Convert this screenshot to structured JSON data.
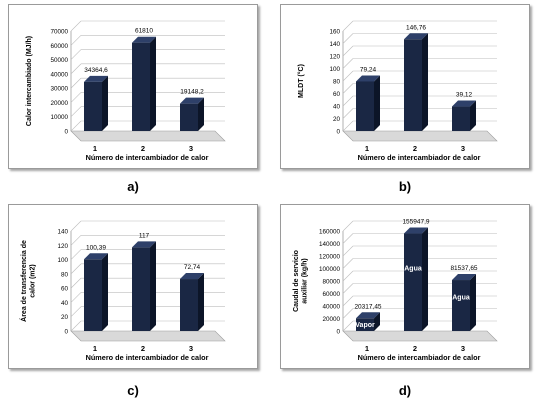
{
  "colors": {
    "bar_front": "#1a2744",
    "bar_top": "#2e4069",
    "bar_side": "#0c1528",
    "grid": "#bdbdbd",
    "floor": "#d9d9d9",
    "text": "#000000",
    "inbar_text": "#ffffff"
  },
  "panel_labels": [
    "a)",
    "b)",
    "c)",
    "d)"
  ],
  "chart_data": [
    {
      "type": "bar",
      "categories": [
        "1",
        "2",
        "3"
      ],
      "values": [
        34364.6,
        61810,
        19148.2
      ],
      "data_labels": [
        "34364,6",
        "61810",
        "19148,2"
      ],
      "ylabel": "Calor intercambiado (MJ/h)",
      "xlabel": "Número de intercambiador de calor",
      "ylim": [
        0,
        70000
      ],
      "yticks": [
        "0",
        "10000",
        "20000",
        "30000",
        "40000",
        "50000",
        "60000",
        "70000"
      ],
      "grid": true,
      "legend": "none"
    },
    {
      "type": "bar",
      "categories": [
        "1",
        "2",
        "3"
      ],
      "values": [
        79.24,
        146.76,
        39.12
      ],
      "data_labels": [
        "79,24",
        "146,76",
        "39,12"
      ],
      "ylabel": "MLDT (°C)",
      "xlabel": "Número de intercambiador de calor",
      "ylim": [
        0,
        160
      ],
      "yticks": [
        "0",
        "20",
        "40",
        "60",
        "80",
        "100",
        "120",
        "140",
        "160"
      ],
      "grid": true,
      "legend": "none"
    },
    {
      "type": "bar",
      "categories": [
        "1",
        "2",
        "3"
      ],
      "values": [
        100.39,
        117,
        72.74
      ],
      "data_labels": [
        "100,39",
        "117",
        "72,74"
      ],
      "ylabel": "Área de transferencia de calor (m2)",
      "xlabel": "Número de intercambiador de calor",
      "ylim": [
        0,
        140
      ],
      "yticks": [
        "0",
        "20",
        "40",
        "60",
        "80",
        "100",
        "120",
        "140"
      ],
      "grid": true,
      "legend": "none"
    },
    {
      "type": "bar",
      "categories": [
        "1",
        "2",
        "3"
      ],
      "values": [
        20317.45,
        155947.9,
        81537.65
      ],
      "data_labels": [
        "20317,45",
        "155947,9",
        "81537,65"
      ],
      "inbar_labels": [
        "Vapor",
        "Agua",
        "Agua"
      ],
      "ylabel": "Caudal de servicio auxiliar (kg/h)",
      "xlabel": "Número de intercambiador de calor",
      "ylim": [
        0,
        160000
      ],
      "yticks": [
        "0",
        "20000",
        "40000",
        "60000",
        "80000",
        "100000",
        "120000",
        "140000",
        "160000"
      ],
      "grid": true,
      "legend": "none"
    }
  ]
}
